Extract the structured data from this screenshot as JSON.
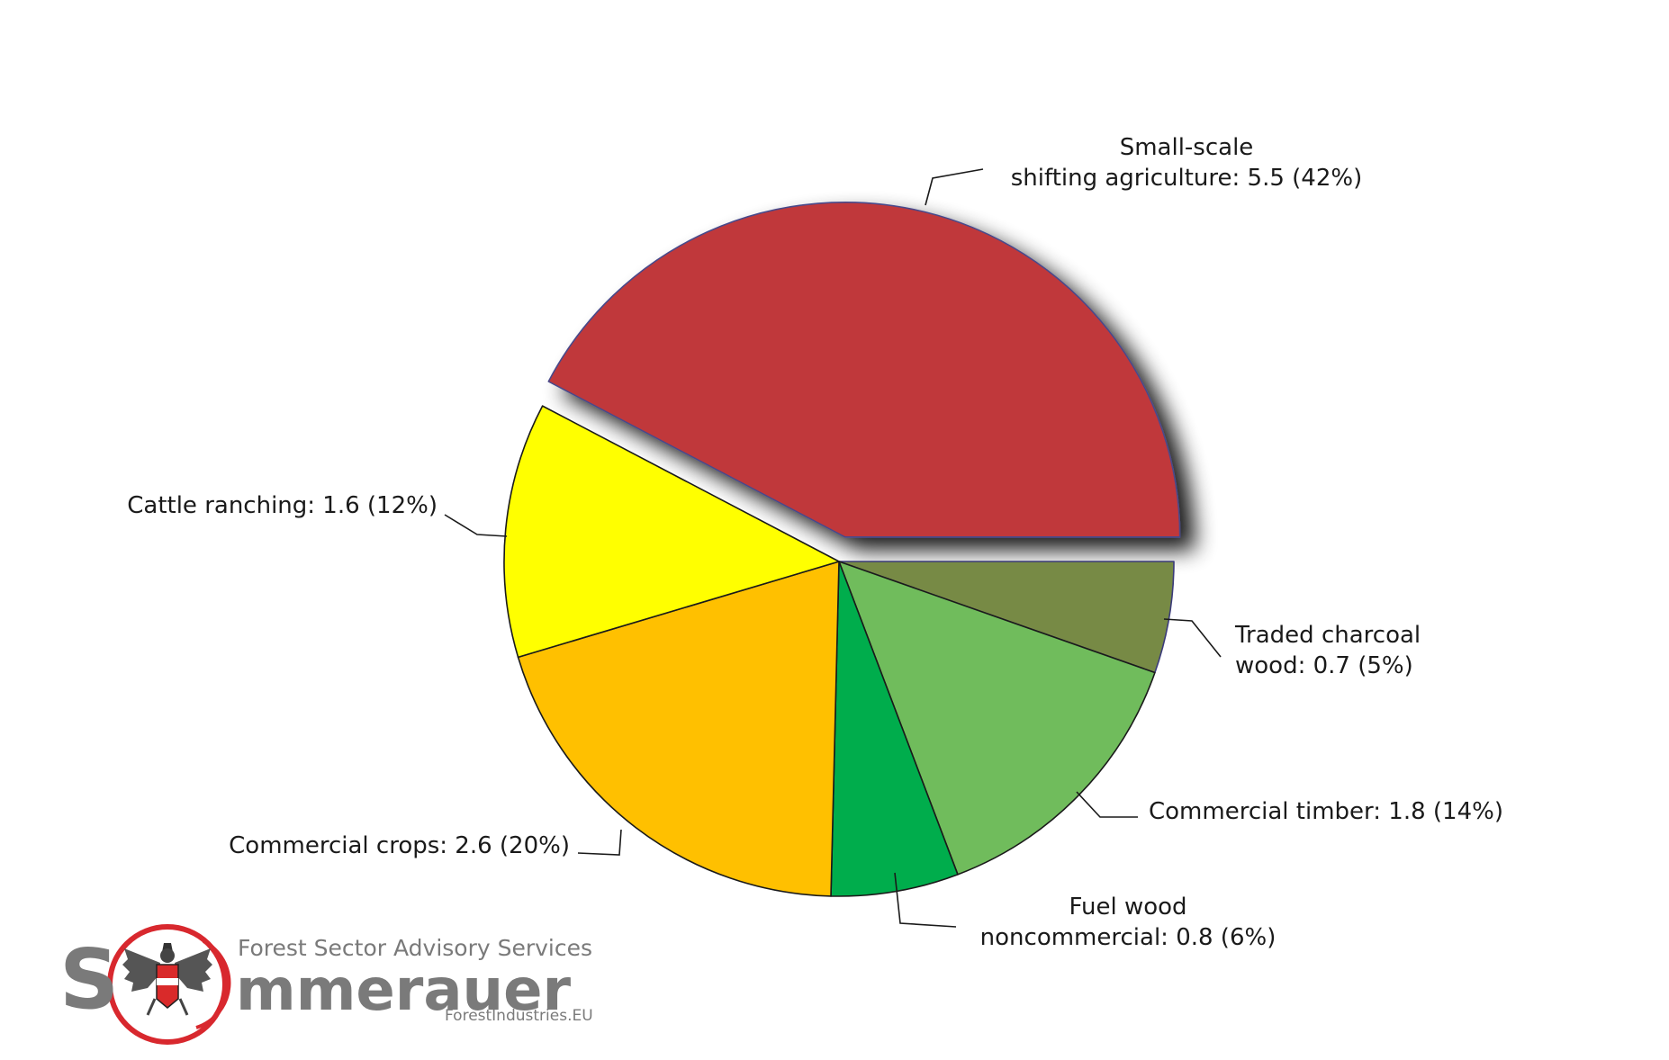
{
  "chart_data": {
    "type": "pie",
    "start_angle_deg": 0,
    "direction": "clockwise",
    "exploded_slice": 0,
    "slices": [
      {
        "label": "Small-scale shifting agriculture: 5.5 (42%)",
        "label_lines": [
          "Small-scale",
          "shifting agriculture: 5.5 (42%)"
        ],
        "value": 5.5,
        "percent": 42,
        "color": "#C0393B",
        "stroke": "#4a4a8a"
      },
      {
        "label": "Traded charcoal wood: 0.7 (5%)",
        "label_lines": [
          "Traded charcoal",
          "wood: 0.7 (5%)"
        ],
        "value": 0.7,
        "percent": 5,
        "color": "#778A45",
        "stroke": "#3b3b7a"
      },
      {
        "label": "Commercial timber: 1.8 (14%)",
        "label_lines": [
          "Commercial timber: 1.8 (14%)"
        ],
        "value": 1.8,
        "percent": 14,
        "color": "#70BC5C",
        "stroke": "#1a1a1a"
      },
      {
        "label": "Fuel wood noncommercial: 0.8 (6%)",
        "label_lines": [
          "Fuel wood",
          "noncommercial: 0.8 (6%)"
        ],
        "value": 0.8,
        "percent": 6,
        "color": "#00AD4C",
        "stroke": "#1a1a1a"
      },
      {
        "label": "Commercial crops: 2.6 (20%)",
        "label_lines": [
          "Commercial crops: 2.6 (20%)"
        ],
        "value": 2.6,
        "percent": 20,
        "color": "#FFC000",
        "stroke": "#1a1a1a"
      },
      {
        "label": "Cattle ranching: 1.6 (12%)",
        "label_lines": [
          "Cattle ranching: 1.6 (12%)"
        ],
        "value": 1.6,
        "percent": 12,
        "color": "#FFFF00",
        "stroke": "#1a1a1a"
      }
    ]
  },
  "logo": {
    "tagline": "Forest Sector Advisory Services",
    "letter_s": "S",
    "name": "mmerauer",
    "url": "ForestIndustries.EU",
    "text_color": "#7a7a7a",
    "ring_color": "#D8282E",
    "emblem": "austrian-eagle-icon"
  }
}
